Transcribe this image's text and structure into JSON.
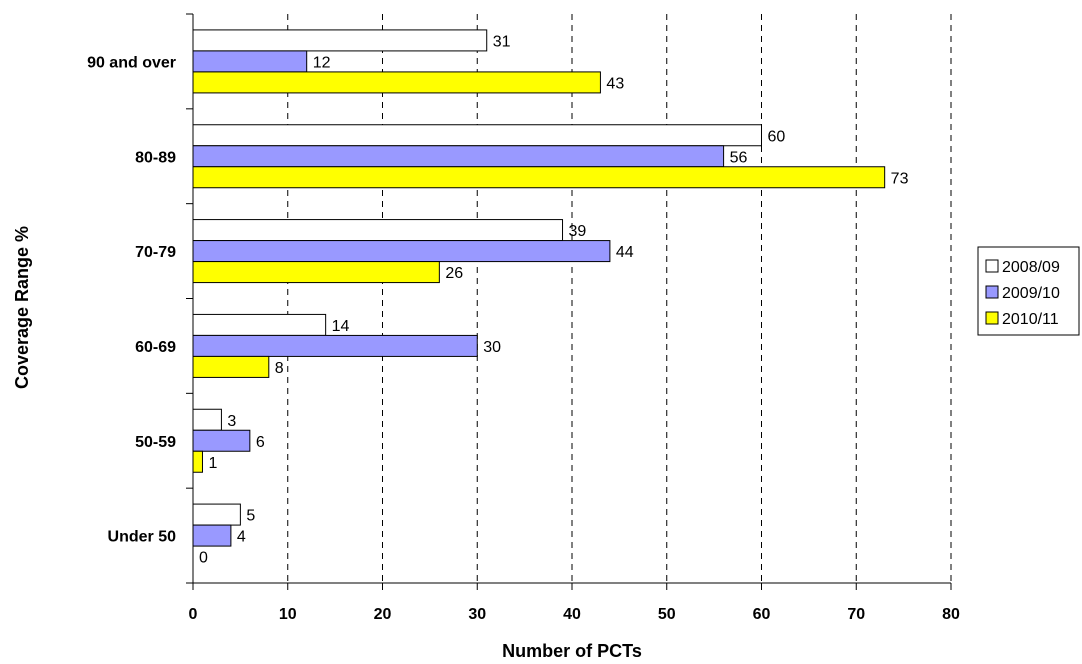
{
  "chart_data": {
    "type": "bar",
    "orientation": "horizontal",
    "title": "",
    "xlabel": "Number of PCTs",
    "ylabel": "Coverage Range %",
    "categories": [
      "90 and over",
      "80-89",
      "70-79",
      "60-69",
      "50-59",
      "Under 50"
    ],
    "series": [
      {
        "name": "2008/09",
        "color": "#ffffff",
        "values": [
          31,
          60,
          39,
          14,
          3,
          5
        ]
      },
      {
        "name": "2009/10",
        "color": "#9999ff",
        "values": [
          12,
          56,
          44,
          30,
          6,
          4
        ]
      },
      {
        "name": "2010/11",
        "color": "#ffff00",
        "values": [
          43,
          73,
          26,
          8,
          1,
          0
        ]
      }
    ],
    "xlim": [
      0,
      80
    ],
    "xticks": [
      0,
      10,
      20,
      30,
      40,
      50,
      60,
      70,
      80
    ],
    "grid": "vertical-dashed",
    "legend": "right"
  }
}
